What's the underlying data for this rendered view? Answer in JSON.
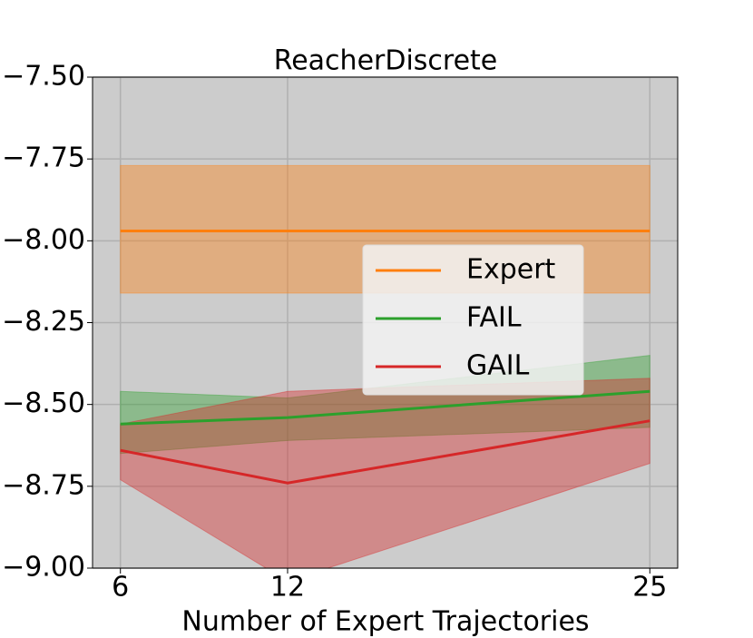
{
  "chart_data": {
    "type": "line",
    "title": "ReacherDiscrete",
    "x_label": "Number of Expert Trajectories",
    "x": [
      6,
      12,
      25
    ],
    "xlim": [
      5,
      26
    ],
    "xticks": [
      6,
      12,
      25
    ],
    "ylim": [
      -9.0,
      -7.5
    ],
    "yticks": [
      {
        "value": -9.0,
        "label": "−9.00"
      },
      {
        "value": -8.75,
        "label": "−8.75"
      },
      {
        "value": -8.5,
        "label": "−8.50"
      },
      {
        "value": -8.25,
        "label": "−8.25"
      },
      {
        "value": -8.0,
        "label": "−8.00"
      },
      {
        "value": -7.75,
        "label": "−7.75"
      },
      {
        "value": -7.5,
        "label": "−7.50"
      }
    ],
    "grid": true,
    "legend": "center right",
    "series": [
      {
        "name": "Expert",
        "color": "#ff7f0e",
        "values": [
          -7.97,
          -7.97,
          -7.97
        ],
        "lower": [
          -8.16,
          -8.16,
          -8.16
        ],
        "upper": [
          -7.77,
          -7.77,
          -7.77
        ]
      },
      {
        "name": "FAIL",
        "color": "#2ca02c",
        "values": [
          -8.56,
          -8.54,
          -8.46
        ],
        "lower": [
          -8.65,
          -8.61,
          -8.57
        ],
        "upper": [
          -8.46,
          -8.48,
          -8.35
        ]
      },
      {
        "name": "GAIL",
        "color": "#d62728",
        "values": [
          -8.64,
          -8.74,
          -8.55
        ],
        "lower": [
          -8.73,
          -9.04,
          -8.68
        ],
        "upper": [
          -8.56,
          -8.46,
          -8.42
        ]
      }
    ]
  }
}
